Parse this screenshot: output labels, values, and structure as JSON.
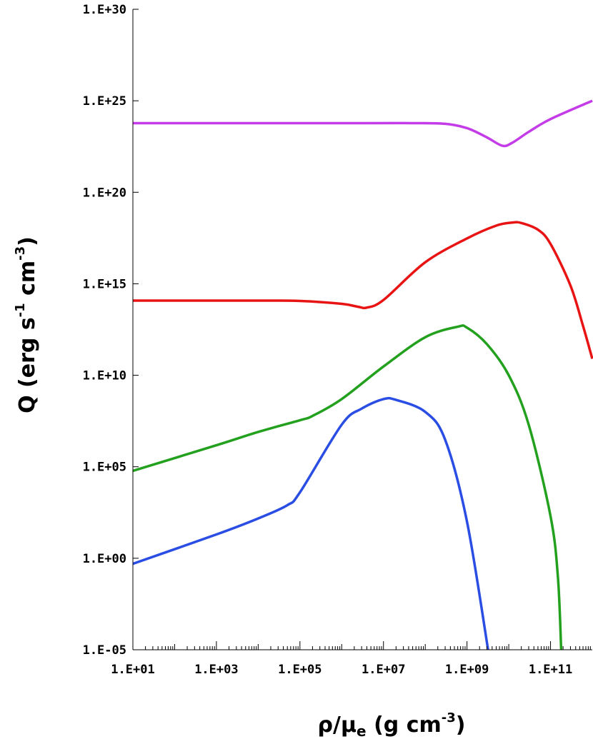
{
  "chart_data": {
    "type": "line",
    "x_scale": "log",
    "y_scale": "log",
    "xlim": [
      10,
      1000000000000.0
    ],
    "ylim": [
      1e-05,
      1e+30
    ],
    "grid": false,
    "x_ticks": [
      {
        "value": 10,
        "label": "1.E+01"
      },
      {
        "value": 1000,
        "label": "1.E+03"
      },
      {
        "value": 100000,
        "label": "1.E+05"
      },
      {
        "value": 10000000,
        "label": "1.E+07"
      },
      {
        "value": 1000000000,
        "label": "1.E+09"
      },
      {
        "value": 100000000000,
        "label": "1.E+11"
      }
    ],
    "y_ticks": [
      {
        "value": 1e-05,
        "label": "1.E-05"
      },
      {
        "value": 1,
        "label": "1.E+00"
      },
      {
        "value": 100000.0,
        "label": "1.E+05"
      },
      {
        "value": 10000000000.0,
        "label": "1.E+10"
      },
      {
        "value": 1000000000000000.0,
        "label": "1.E+15"
      },
      {
        "value": 1e+20,
        "label": "1.E+20"
      },
      {
        "value": 1e+25,
        "label": "1.E+25"
      },
      {
        "value": 1e+30,
        "label": "1.E+30"
      }
    ],
    "xlabel": {
      "main": "ρ/μ",
      "sub": "e",
      "unit": " (g cm",
      "exp": "-3",
      "close": ")"
    },
    "ylabel": {
      "main": "Q (erg s",
      "exp1": "-1",
      "mid": " cm",
      "exp2": "-3",
      "close": ")"
    },
    "series": [
      {
        "color": "#c43ce8",
        "points": [
          [
            10,
            6e+23
          ],
          [
            1000000.0,
            6e+23
          ],
          [
            50000000.0,
            6e+23
          ],
          [
            300000000.0,
            5.5e+23
          ],
          [
            1000000000.0,
            3.2e+23
          ],
          [
            3000000000.0,
            1e+23
          ],
          [
            7000000000.0,
            3.5e+22
          ],
          [
            12000000000.0,
            5e+22
          ],
          [
            30000000000.0,
            2e+23
          ],
          [
            100000000000.0,
            1e+24
          ],
          [
            1000000000000.0,
            1e+25
          ]
        ]
      },
      {
        "color": "#e81414",
        "points": [
          [
            10,
            120000000000000.0
          ],
          [
            10000.0,
            120000000000000.0
          ],
          [
            100000.0,
            115000000000000.0
          ],
          [
            1000000.0,
            80000000000000.0
          ],
          [
            2500000.0,
            55000000000000.0
          ],
          [
            4000000.0,
            50000000000000.0
          ],
          [
            10000000.0,
            130000000000000.0
          ],
          [
            100000000.0,
            1.5e+16
          ],
          [
            1000000000.0,
            3e+17
          ],
          [
            5000000000.0,
            1.5e+18
          ],
          [
            12000000000.0,
            2.2e+18
          ],
          [
            20000000000.0,
            2.1e+18
          ],
          [
            50000000000.0,
            9e+17
          ],
          [
            100000000000.0,
            1.5e+17
          ],
          [
            300000000000.0,
            800000000000000.0
          ],
          [
            600000000000.0,
            5000000000000.0
          ],
          [
            1000000000000.0,
            80000000000.0
          ]
        ]
      },
      {
        "color": "#22a01e",
        "points": [
          [
            10,
            60000.0
          ],
          [
            1000.0,
            1500000.0
          ],
          [
            10000.0,
            8000000.0
          ],
          [
            100000.0,
            35000000.0
          ],
          [
            200000.0,
            60000000.0
          ],
          [
            1000000.0,
            500000000.0
          ],
          [
            10000000.0,
            30000000000.0
          ],
          [
            100000000.0,
            1200000000000.0
          ],
          [
            600000000.0,
            4500000000000.0
          ],
          [
            1000000000.0,
            4000000000000.0
          ],
          [
            3000000000.0,
            500000000000.0
          ],
          [
            10000000000.0,
            10000000000.0
          ],
          [
            30000000000.0,
            20000000.0
          ],
          [
            100000000000.0,
            200.0
          ],
          [
            150000000000.0,
            0.1
          ],
          [
            180000000000.0,
            1e-05
          ]
        ]
      },
      {
        "color": "#2a4de3",
        "points": [
          [
            10,
            0.5
          ],
          [
            1000.0,
            20.0
          ],
          [
            10000.0,
            150.0
          ],
          [
            50000.0,
            800.0
          ],
          [
            100000.0,
            4000.0
          ],
          [
            1000000.0,
            20000000.0
          ],
          [
            3000000.0,
            150000000.0
          ],
          [
            10000000.0,
            500000000.0
          ],
          [
            20000000.0,
            450000000.0
          ],
          [
            100000000.0,
            100000000.0
          ],
          [
            300000000.0,
            3000000.0
          ],
          [
            1000000000.0,
            100.0
          ],
          [
            3200000000.0,
            1e-05
          ]
        ]
      }
    ]
  }
}
